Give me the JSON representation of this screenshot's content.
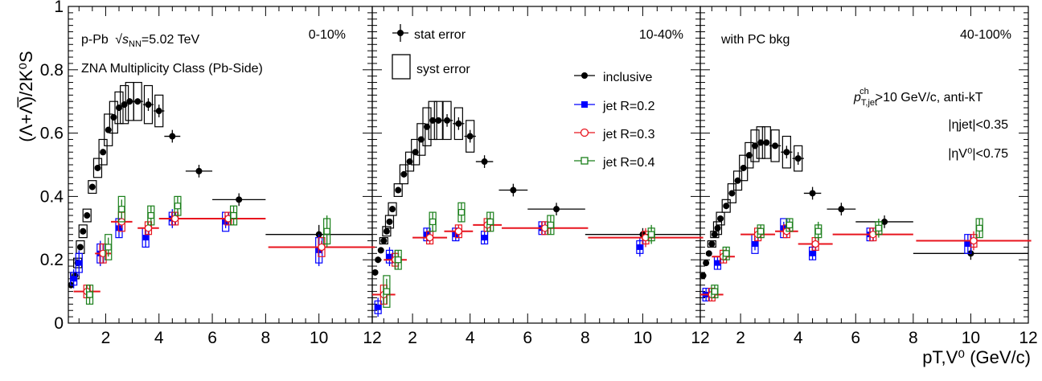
{
  "figure": {
    "ylabel": "(Λ+Λ̅)/2K⁰S",
    "xlabel": "pT,V⁰ (GeV/c)",
    "xticks": [
      "2",
      "4",
      "6",
      "8",
      "10",
      "12"
    ],
    "yticks": [
      "0",
      "0.2",
      "0.4",
      "0.6",
      "0.8",
      "1"
    ],
    "colors": {
      "inclusive": "#000000",
      "jet02": "#0000ff",
      "jet03": "#e8141e",
      "jet04": "#1a7f1a"
    }
  },
  "panel1_text": {
    "system_prefix": "p-Pb",
    "energy": "5.02 TeV",
    "class": "ZNA Multiplicity Class (Pb-Side)",
    "centrality": "0-10%"
  },
  "panel2_text": {
    "stat": "stat error",
    "syst": "syst error",
    "centrality": "10-40%",
    "legend": {
      "inclusive": "inclusive",
      "jet02": "jet R=0.2",
      "jet03": "jet R=0.3",
      "jet04": "jet R=0.4"
    }
  },
  "panel3_text": {
    "bkg": "with PC bkg",
    "centrality": "40-100%",
    "cut_pt": ">10 GeV/c, anti-kT",
    "cut_eta_jet": "|ηjet|<0.35",
    "cut_eta_v0": "|ηV⁰|<0.75"
  },
  "chart_data": [
    {
      "type": "scatter",
      "centrality": "0-10%",
      "xlim": [
        0.6,
        12
      ],
      "ylim": [
        0,
        1
      ],
      "series": [
        {
          "name": "inclusive",
          "color": "#000000",
          "x": [
            0.7,
            0.85,
            0.95,
            1.05,
            1.15,
            1.3,
            1.5,
            1.7,
            1.9,
            2.1,
            2.3,
            2.5,
            2.7,
            2.9,
            3.2,
            3.6,
            4.0,
            4.5,
            5.5,
            7.0,
            10.0
          ],
          "y": [
            0.12,
            0.15,
            0.19,
            0.24,
            0.29,
            0.34,
            0.43,
            0.49,
            0.54,
            0.61,
            0.65,
            0.68,
            0.69,
            0.7,
            0.7,
            0.69,
            0.67,
            0.59,
            0.48,
            0.39,
            0.28
          ],
          "xerr": [
            0.05,
            0.05,
            0.05,
            0.05,
            0.05,
            0.1,
            0.1,
            0.1,
            0.1,
            0.1,
            0.1,
            0.1,
            0.1,
            0.1,
            0.2,
            0.2,
            0.2,
            0.3,
            0.5,
            1.0,
            2.0
          ],
          "yerr": [
            0.01,
            0.01,
            0.01,
            0.01,
            0.01,
            0.01,
            0.01,
            0.01,
            0.01,
            0.01,
            0.01,
            0.01,
            0.01,
            0.01,
            0.01,
            0.02,
            0.02,
            0.02,
            0.02,
            0.02,
            0.03
          ],
          "syst": [
            0,
            0.01,
            0.015,
            0.02,
            0.02,
            0.02,
            0.02,
            0.03,
            0.04,
            0.05,
            0.05,
            0.05,
            0.06,
            0.06,
            0.06,
            0.06,
            0.05,
            0,
            0,
            0,
            0
          ]
        },
        {
          "name": "jet R=0.2",
          "color": "#0000ff",
          "x": [
            0.8,
            1.0,
            1.8,
            2.5,
            3.5,
            4.5,
            6.5,
            10.0
          ],
          "y": [
            0.14,
            0.19,
            0.22,
            0.3,
            0.27,
            0.33,
            0.32,
            0.23
          ],
          "xerr": [
            0,
            0,
            0,
            0,
            0,
            0,
            0,
            0
          ],
          "yerr": [
            0.03,
            0.04,
            0.04,
            0.03,
            0.03,
            0.03,
            0.02,
            0.05
          ],
          "syst": [
            0.02,
            0.03,
            0.03,
            0.03,
            0.03,
            0.02,
            0.03,
            0.04
          ]
        },
        {
          "name": "jet R=0.3",
          "color": "#e8141e",
          "x": [
            1.3,
            1.9,
            2.6,
            3.6,
            4.6,
            6.6,
            10.1
          ],
          "y": [
            0.1,
            0.22,
            0.32,
            0.3,
            0.33,
            0.33,
            0.24
          ],
          "xerr": [
            0.5,
            0.3,
            0.4,
            0.4,
            0.6,
            1.4,
            2.0
          ],
          "yerr": [
            0.02,
            0.03,
            0.02,
            0.02,
            0.02,
            0.02,
            0.02
          ],
          "syst": [
            0.02,
            0.03,
            0.03,
            0.02,
            0.02,
            0.02,
            0.03
          ]
        },
        {
          "name": "jet R=0.4",
          "color": "#1a7f1a",
          "x": [
            1.4,
            2.1,
            2.6,
            3.7,
            4.7,
            6.8,
            10.3
          ],
          "y": [
            0.09,
            0.24,
            0.36,
            0.34,
            0.37,
            0.34,
            0.29
          ],
          "xerr": [
            0,
            0,
            0,
            0,
            0,
            0,
            0
          ],
          "yerr": [
            0.03,
            0.03,
            0.03,
            0.03,
            0.03,
            0.03,
            0.05
          ],
          "syst": [
            0.03,
            0.04,
            0.04,
            0.03,
            0.03,
            0.03,
            0.04
          ]
        }
      ]
    },
    {
      "type": "scatter",
      "centrality": "10-40%",
      "xlim": [
        0.6,
        12
      ],
      "ylim": [
        0,
        1
      ],
      "series": [
        {
          "name": "inclusive",
          "color": "#000000",
          "x": [
            0.7,
            0.8,
            0.9,
            1.0,
            1.1,
            1.2,
            1.3,
            1.5,
            1.7,
            1.9,
            2.1,
            2.3,
            2.5,
            2.7,
            2.9,
            3.2,
            3.6,
            4.0,
            4.5,
            5.5,
            7.0,
            10.0
          ],
          "y": [
            0.16,
            0.2,
            0.23,
            0.26,
            0.29,
            0.32,
            0.36,
            0.42,
            0.47,
            0.51,
            0.54,
            0.58,
            0.62,
            0.64,
            0.64,
            0.64,
            0.63,
            0.59,
            0.51,
            0.42,
            0.36,
            0.28
          ],
          "xerr": [
            0.05,
            0.05,
            0.05,
            0.05,
            0.05,
            0.05,
            0.05,
            0.1,
            0.1,
            0.1,
            0.1,
            0.1,
            0.1,
            0.1,
            0.1,
            0.2,
            0.2,
            0.2,
            0.3,
            0.5,
            1.0,
            2.0
          ],
          "yerr": [
            0.01,
            0.01,
            0.01,
            0.01,
            0.01,
            0.01,
            0.01,
            0.01,
            0.01,
            0.01,
            0.01,
            0.01,
            0.01,
            0.01,
            0.01,
            0.02,
            0.02,
            0.02,
            0.02,
            0.02,
            0.02,
            0.02
          ],
          "syst": [
            0,
            0,
            0,
            0.01,
            0.015,
            0.02,
            0.02,
            0.02,
            0.03,
            0.03,
            0.04,
            0.05,
            0.06,
            0.06,
            0.06,
            0.06,
            0.05,
            0.05,
            0,
            0,
            0,
            0
          ]
        },
        {
          "name": "jet R=0.2",
          "color": "#0000ff",
          "x": [
            0.8,
            1.2,
            2.5,
            3.5,
            4.5,
            6.5,
            9.9
          ],
          "y": [
            0.05,
            0.21,
            0.28,
            0.28,
            0.27,
            0.3,
            0.24
          ],
          "xerr": [
            0,
            0,
            0,
            0,
            0,
            0,
            0
          ],
          "yerr": [
            0.03,
            0.03,
            0.02,
            0.02,
            0.02,
            0.02,
            0.03
          ],
          "syst": [
            0.02,
            0.02,
            0.02,
            0.02,
            0.02,
            0.02,
            0.02
          ]
        },
        {
          "name": "jet R=0.3",
          "color": "#e8141e",
          "x": [
            1.0,
            1.4,
            2.6,
            3.6,
            4.6,
            6.6,
            10.1
          ],
          "y": [
            0.09,
            0.2,
            0.27,
            0.29,
            0.31,
            0.3,
            0.27
          ],
          "xerr": [
            0.4,
            0.4,
            0.6,
            0.5,
            0.5,
            1.5,
            2.0
          ],
          "yerr": [
            0.03,
            0.03,
            0.02,
            0.02,
            0.02,
            0.02,
            0.03
          ],
          "syst": [
            0.03,
            0.02,
            0.02,
            0.02,
            0.02,
            0.02,
            0.02
          ]
        },
        {
          "name": "jet R=0.4",
          "color": "#1a7f1a",
          "x": [
            1.1,
            1.5,
            2.7,
            3.7,
            4.7,
            6.8,
            10.3
          ],
          "y": [
            0.1,
            0.2,
            0.32,
            0.35,
            0.32,
            0.31,
            0.28
          ],
          "xerr": [
            0,
            0,
            0,
            0,
            0,
            0,
            0
          ],
          "yerr": [
            0.04,
            0.03,
            0.03,
            0.03,
            0.03,
            0.03,
            0.03
          ],
          "syst": [
            0.05,
            0.03,
            0.03,
            0.03,
            0.03,
            0.03,
            0.02
          ]
        }
      ]
    },
    {
      "type": "scatter",
      "centrality": "40-100%",
      "xlim": [
        0.6,
        12
      ],
      "ylim": [
        0,
        1
      ],
      "series": [
        {
          "name": "inclusive",
          "color": "#000000",
          "x": [
            0.7,
            0.8,
            0.9,
            1.0,
            1.1,
            1.2,
            1.3,
            1.5,
            1.7,
            1.9,
            2.1,
            2.3,
            2.5,
            2.7,
            2.9,
            3.2,
            3.6,
            4.0,
            4.5,
            5.5,
            7.0,
            10.0
          ],
          "y": [
            0.15,
            0.19,
            0.22,
            0.25,
            0.28,
            0.3,
            0.33,
            0.37,
            0.41,
            0.45,
            0.49,
            0.53,
            0.56,
            0.57,
            0.57,
            0.56,
            0.54,
            0.52,
            0.41,
            0.36,
            0.32,
            0.22
          ],
          "xerr": [
            0.05,
            0.05,
            0.05,
            0.05,
            0.05,
            0.05,
            0.05,
            0.1,
            0.1,
            0.1,
            0.1,
            0.1,
            0.1,
            0.1,
            0.1,
            0.2,
            0.2,
            0.2,
            0.3,
            0.5,
            1.0,
            2.0
          ],
          "yerr": [
            0.01,
            0.01,
            0.01,
            0.01,
            0.01,
            0.01,
            0.01,
            0.01,
            0.01,
            0.01,
            0.01,
            0.01,
            0.01,
            0.01,
            0.01,
            0.01,
            0.02,
            0.02,
            0.02,
            0.02,
            0.02,
            0.02
          ],
          "syst": [
            0,
            0,
            0,
            0.01,
            0.01,
            0.02,
            0.02,
            0.02,
            0.03,
            0.03,
            0.04,
            0.04,
            0.05,
            0.05,
            0.05,
            0.05,
            0.05,
            0.04,
            0,
            0,
            0,
            0
          ]
        },
        {
          "name": "jet R=0.2",
          "color": "#0000ff",
          "x": [
            0.8,
            1.2,
            2.5,
            3.5,
            4.5,
            6.5,
            9.9
          ],
          "y": [
            0.09,
            0.19,
            0.25,
            0.3,
            0.22,
            0.28,
            0.25
          ],
          "xerr": [
            0,
            0,
            0,
            0,
            0,
            0,
            0
          ],
          "yerr": [
            0.02,
            0.02,
            0.02,
            0.02,
            0.02,
            0.02,
            0.03
          ],
          "syst": [
            0.02,
            0.02,
            0.03,
            0.03,
            0.02,
            0.02,
            0.03
          ]
        },
        {
          "name": "jet R=0.3",
          "color": "#e8141e",
          "x": [
            1.0,
            1.4,
            2.6,
            3.6,
            4.6,
            6.6,
            10.1
          ],
          "y": [
            0.09,
            0.21,
            0.28,
            0.29,
            0.25,
            0.28,
            0.26
          ],
          "xerr": [
            0.4,
            0.4,
            0.6,
            0.4,
            0.6,
            1.4,
            2.0
          ],
          "yerr": [
            0.02,
            0.02,
            0.02,
            0.02,
            0.02,
            0.02,
            0.03
          ],
          "syst": [
            0.02,
            0.02,
            0.02,
            0.02,
            0.02,
            0.02,
            0.02
          ]
        },
        {
          "name": "jet R=0.4",
          "color": "#1a7f1a",
          "x": [
            1.1,
            1.5,
            2.7,
            3.7,
            4.7,
            6.8,
            10.3
          ],
          "y": [
            0.1,
            0.22,
            0.29,
            0.31,
            0.29,
            0.3,
            0.3
          ],
          "xerr": [
            0,
            0,
            0,
            0,
            0,
            0,
            0
          ],
          "yerr": [
            0.02,
            0.02,
            0.02,
            0.02,
            0.03,
            0.03,
            0.03
          ],
          "syst": [
            0.02,
            0.02,
            0.02,
            0.02,
            0.02,
            0.02,
            0.03
          ]
        }
      ]
    }
  ]
}
